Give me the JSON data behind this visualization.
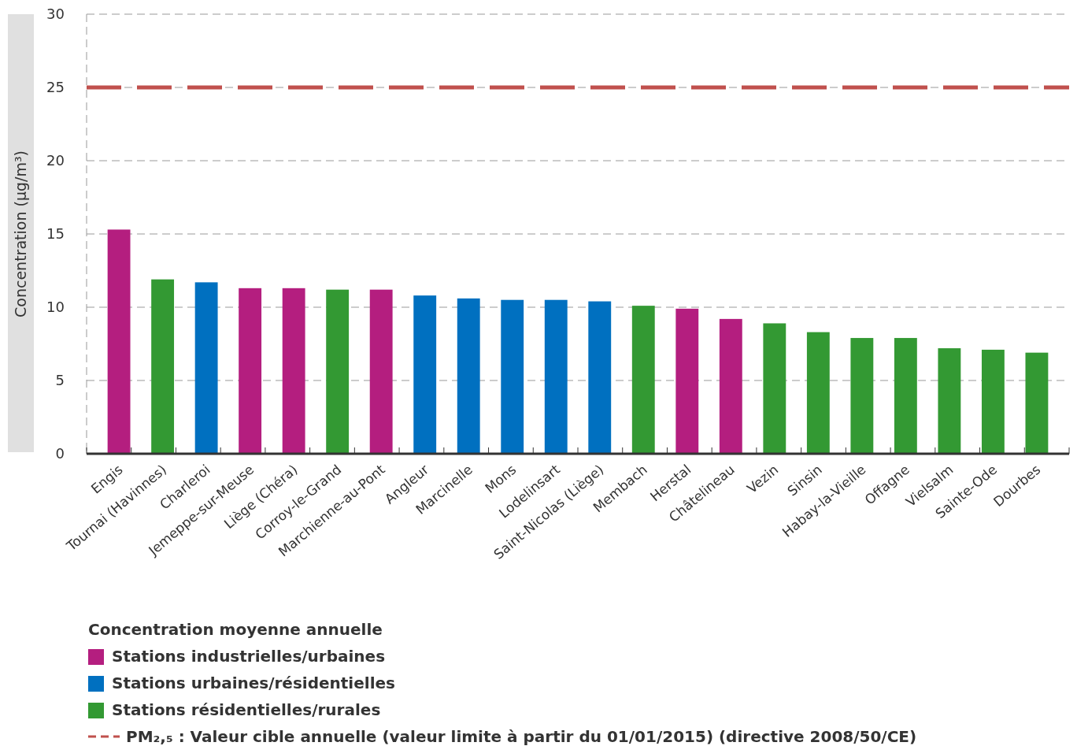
{
  "chart_data": {
    "type": "bar",
    "ylabel": "Concentration (µg/m³)",
    "legend_title": "Concentration moyenne annuelle",
    "legend": "bottom",
    "grid": "y",
    "categories": [
      "Engis",
      "Tournai (Havinnes)",
      "Charleroi",
      "Jemeppe-sur-Meuse",
      "Liège (Chéra)",
      "Corroy-le-Grand",
      "Marchienne-au-Pont",
      "Angleur",
      "Marcinelle",
      "Mons",
      "Lodelinsart",
      "Saint-Nicolas (Liège)",
      "Membach",
      "Herstal",
      "Châtelineau",
      "Vezin",
      "Sinsin",
      "Habay-la-Vieille",
      "Offagne",
      "Vielsalm",
      "Sainte-Ode",
      "Dourbes"
    ],
    "series": [
      {
        "name": "Stations industrielles/urbaines",
        "color": "#b41e7f",
        "values": [
          15.3,
          null,
          null,
          11.3,
          11.3,
          null,
          11.2,
          null,
          null,
          null,
          null,
          null,
          null,
          9.9,
          9.2,
          null,
          null,
          null,
          null,
          null,
          null,
          null
        ]
      },
      {
        "name": "Stations urbaines/résidentielles",
        "color": "#0070c0",
        "values": [
          null,
          null,
          11.7,
          null,
          null,
          null,
          null,
          10.8,
          10.6,
          10.5,
          10.5,
          10.4,
          null,
          null,
          null,
          null,
          null,
          null,
          null,
          null,
          null,
          null
        ]
      },
      {
        "name": "Stations résidentielles/rurales",
        "color": "#339933",
        "values": [
          null,
          11.9,
          null,
          null,
          null,
          11.2,
          null,
          null,
          null,
          null,
          null,
          null,
          10.1,
          null,
          null,
          8.9,
          8.3,
          7.9,
          7.9,
          7.2,
          7.1,
          6.9
        ]
      }
    ],
    "ylim": [
      0,
      30
    ],
    "yticks": [
      0,
      5,
      10,
      15,
      20,
      25,
      30
    ],
    "ref_lines": [
      {
        "axis": "y",
        "value": 25,
        "label": "PM₂,₅ : Valeur cible annuelle (valeur limite à partir du 01/01/2015) (directive 2008/50/CE)",
        "color": "#c0504d",
        "line_style": "dashed"
      }
    ]
  }
}
